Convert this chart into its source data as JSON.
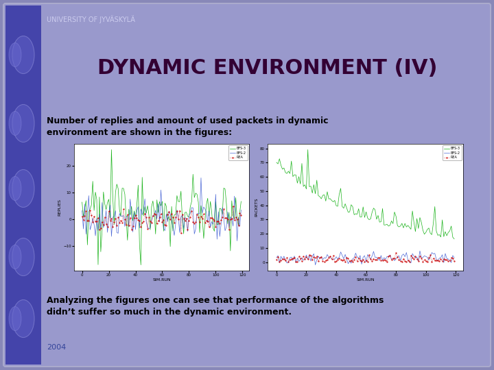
{
  "title": "DYNAMIC ENVIRONMENT (IV)",
  "university": "UNIVERSITY OF JYVÄSKYLÄ",
  "subtitle": "Number of replies and amount of used packets in dynamic\nenvironment are shown in the figures:",
  "footer": "Analyzing the figures one can see that performance of the algorithms\ndidn’t suffer so much in the dynamic environment.",
  "year": "2004",
  "bg_outer": "#8888b8",
  "bg_slide": "#9999cc",
  "bg_left_bar": "#4444aa",
  "title_color": "#330033",
  "text_color": "#000000",
  "univ_color": "#ccccee",
  "chart1_ylabel": "REPLIES",
  "chart1_xlabel": "SIM.RUN",
  "chart2_ylabel": "PACKETS",
  "chart2_xlabel": "SIM.RUN",
  "legend_labels": [
    "REA",
    "BFS-2",
    "BFS-3"
  ],
  "legend_colors": [
    "#cc0000",
    "#2244cc",
    "#00aa00"
  ],
  "n_points": 120,
  "seed": 42
}
